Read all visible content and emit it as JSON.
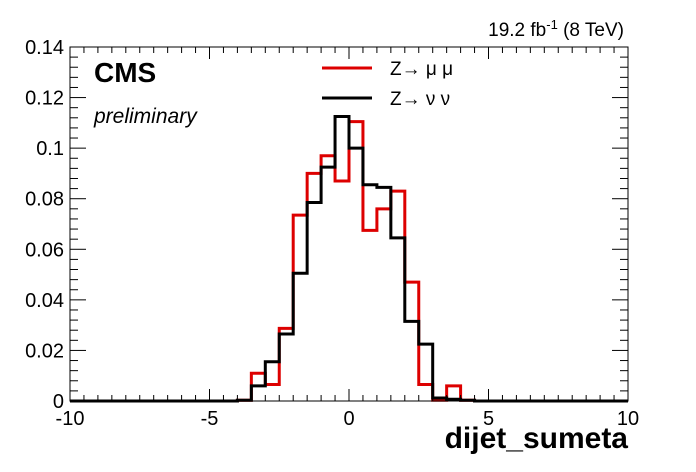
{
  "header": {
    "lumi": "19.2 fb",
    "lumi_exp": "-1",
    "lumi_energy": " (8 TeV)"
  },
  "labels": {
    "experiment": "CMS",
    "status": "preliminary"
  },
  "chart_data": {
    "type": "histogram",
    "xlabel": "dijet_sumeta",
    "ylabel": "",
    "xlim": [
      -10,
      10
    ],
    "ylim": [
      0,
      0.14
    ],
    "xticks": [
      -10,
      -5,
      0,
      5,
      10
    ],
    "yticks": [
      0,
      0.02,
      0.04,
      0.06,
      0.08,
      0.1,
      0.12,
      0.14
    ],
    "ytick_labels": [
      "0",
      "0.02",
      "0.04",
      "0.06",
      "0.08",
      "0.1",
      "0.12",
      "0.14"
    ],
    "grid": false,
    "legend_position": "top-center",
    "bin_edges": [
      -10,
      -9.5,
      -9,
      -8.5,
      -8,
      -7.5,
      -7,
      -6.5,
      -6,
      -5.5,
      -5,
      -4.5,
      -4,
      -3.5,
      -3,
      -2.5,
      -2,
      -1.5,
      -1,
      -0.5,
      0,
      0.5,
      1,
      1.5,
      2,
      2.5,
      3,
      3.5,
      4,
      4.5,
      5,
      5.5,
      6,
      6.5,
      7,
      7.5,
      8,
      8.5,
      9,
      9.5,
      10
    ],
    "series": [
      {
        "name": "Z→ μ μ",
        "color": "#dd0000",
        "values": [
          0,
          0,
          0,
          0,
          0,
          0,
          0,
          0,
          0,
          0,
          0,
          0,
          0.0003,
          0.011,
          0.0065,
          0.0287,
          0.0735,
          0.09,
          0.097,
          0.087,
          0.1105,
          0.0675,
          0.076,
          0.083,
          0.047,
          0.0065,
          0.0003,
          0.006,
          0.0003,
          0,
          0,
          0,
          0,
          0,
          0,
          0,
          0,
          0,
          0,
          0
        ]
      },
      {
        "name": "Z→ ν ν",
        "color": "#000000",
        "values": [
          0,
          0,
          0,
          0,
          0,
          0,
          0,
          0,
          0,
          0,
          0,
          0,
          0.0003,
          0.006,
          0.0155,
          0.0265,
          0.0505,
          0.0785,
          0.0925,
          0.1125,
          0.1,
          0.0855,
          0.0845,
          0.0645,
          0.0315,
          0.0225,
          0.0012,
          0.0007,
          0.0003,
          0,
          0,
          0,
          0,
          0,
          0,
          0,
          0,
          0,
          0,
          0
        ]
      }
    ]
  }
}
